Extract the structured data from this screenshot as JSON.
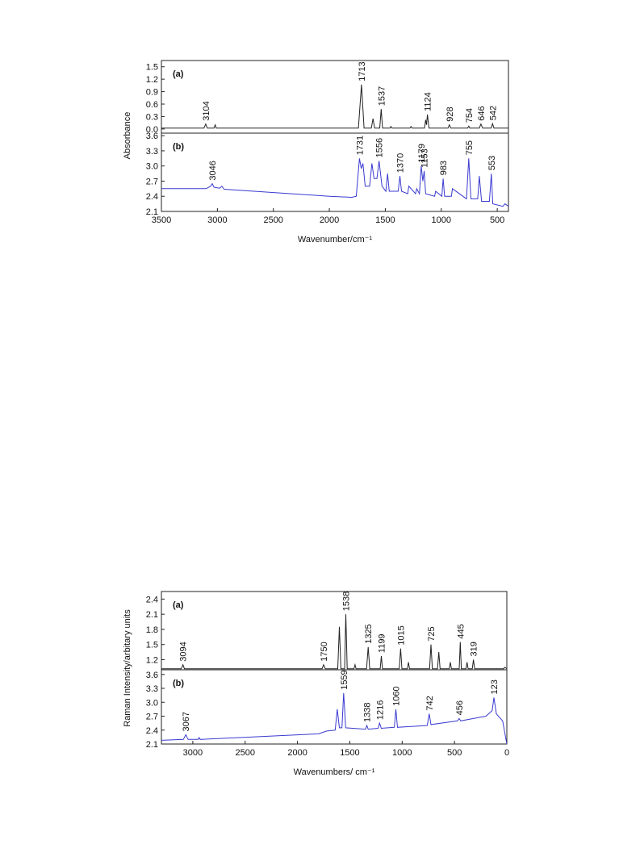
{
  "chart_data": [
    {
      "type": "line",
      "panel_label": "(a)",
      "y_label": "Absorbance",
      "color": "#222222",
      "xlim": [
        3500,
        400
      ],
      "ylim": [
        -0.1,
        1.65
      ],
      "yticks": [
        {
          "value": 0,
          "label": "0.0"
        },
        0.3,
        0.6,
        0.9,
        1.2,
        1.5
      ],
      "x": [
        3500,
        3120,
        3104,
        3090,
        3030,
        3020,
        3010,
        1740,
        1713,
        1690,
        1625,
        1610,
        1595,
        1550,
        1537,
        1525,
        1460,
        1450,
        1440,
        1280,
        1270,
        1260,
        1150,
        1140,
        1132,
        1124,
        1110,
        940,
        928,
        915,
        765,
        754,
        745,
        660,
        646,
        630,
        555,
        542,
        530,
        400
      ],
      "values": [
        0.02,
        0.02,
        0.12,
        0.02,
        0.02,
        0.1,
        0.02,
        0.02,
        1.07,
        0.02,
        0.02,
        0.25,
        0.02,
        0.02,
        0.48,
        0.02,
        0.02,
        0.06,
        0.02,
        0.02,
        0.06,
        0.02,
        0.02,
        0.22,
        0.1,
        0.35,
        0.02,
        0.02,
        0.1,
        0.02,
        0.02,
        0.07,
        0.02,
        0.02,
        0.12,
        0.02,
        0.02,
        0.13,
        0.02,
        0.02
      ],
      "annotations": [
        {
          "x": 3104,
          "label": "3104"
        },
        {
          "x": 1713,
          "label": "1713"
        },
        {
          "x": 1537,
          "label": "1537"
        },
        {
          "x": 1124,
          "label": "1124"
        },
        {
          "x": 928,
          "label": "928"
        },
        {
          "x": 754,
          "label": "754"
        },
        {
          "x": 646,
          "label": "646"
        },
        {
          "x": 542,
          "label": "542"
        }
      ]
    },
    {
      "type": "line",
      "panel_label": "(b)",
      "x_label": "Wavenumber/cm⁻¹",
      "color": "#3a3ad0",
      "xlim": [
        3500,
        400
      ],
      "ylim": [
        2.1,
        3.65
      ],
      "yticks": [
        2.1,
        2.4,
        2.7,
        {
          "value": 3,
          "label": "3.0"
        },
        3.3,
        3.6
      ],
      "xticks": [
        3500,
        3000,
        2500,
        2000,
        1500,
        1000,
        500
      ],
      "x": [
        3500,
        3100,
        3060,
        3046,
        3030,
        2980,
        2960,
        2940,
        2000,
        1800,
        1760,
        1731,
        1715,
        1700,
        1680,
        1640,
        1620,
        1600,
        1575,
        1556,
        1530,
        1495,
        1480,
        1465,
        1385,
        1370,
        1355,
        1300,
        1290,
        1230,
        1220,
        1195,
        1179,
        1165,
        1153,
        1140,
        1060,
        1050,
        995,
        983,
        970,
        910,
        900,
        775,
        755,
        735,
        675,
        660,
        640,
        570,
        553,
        540,
        450,
        430,
        400
      ],
      "values": [
        2.55,
        2.55,
        2.6,
        2.65,
        2.58,
        2.56,
        2.6,
        2.54,
        2.4,
        2.38,
        2.4,
        3.15,
        2.95,
        3.05,
        2.6,
        2.6,
        3.05,
        2.75,
        2.75,
        3.1,
        2.6,
        2.5,
        2.85,
        2.5,
        2.5,
        2.8,
        2.5,
        2.45,
        2.6,
        2.45,
        2.55,
        2.45,
        3,
        2.7,
        2.9,
        2.45,
        2.4,
        2.5,
        2.4,
        2.75,
        2.4,
        2.4,
        2.55,
        2.35,
        3.15,
        2.35,
        2.35,
        2.8,
        2.3,
        2.3,
        2.85,
        2.25,
        2.2,
        2.25,
        2.2
      ],
      "annotations": [
        {
          "x": 3046,
          "label": "3046"
        },
        {
          "x": 1731,
          "label": "1731"
        },
        {
          "x": 1556,
          "label": "1556"
        },
        {
          "x": 1370,
          "label": "1370"
        },
        {
          "x": 1179,
          "label": "1179"
        },
        {
          "x": 1153,
          "label": "1153"
        },
        {
          "x": 983,
          "label": "983"
        },
        {
          "x": 755,
          "label": "755"
        },
        {
          "x": 553,
          "label": "553"
        }
      ]
    },
    {
      "type": "line",
      "panel_label": "(a)",
      "y_label": "Raman Intensity/arbitary units",
      "color": "#222222",
      "xlim": [
        3300,
        0
      ],
      "ylim": [
        1.0,
        2.55
      ],
      "yticks": [
        1.2,
        1.5,
        1.8,
        2.1,
        2.4
      ],
      "x": [
        3300,
        3110,
        3094,
        3080,
        1765,
        1750,
        1735,
        1615,
        1600,
        1585,
        1550,
        1538,
        1525,
        1460,
        1450,
        1440,
        1340,
        1325,
        1310,
        1210,
        1199,
        1188,
        1028,
        1015,
        1002,
        950,
        940,
        930,
        738,
        725,
        712,
        662,
        650,
        638,
        550,
        540,
        530,
        455,
        445,
        435,
        390,
        380,
        370,
        330,
        319,
        308,
        30,
        20,
        0
      ],
      "values": [
        1.02,
        1.02,
        1.1,
        1.02,
        1.02,
        1.1,
        1.02,
        1.02,
        1.85,
        1.02,
        1.02,
        2.1,
        1.02,
        1.02,
        1.1,
        1.02,
        1.02,
        1.45,
        1.02,
        1.02,
        1.27,
        1.02,
        1.02,
        1.42,
        1.02,
        1.02,
        1.15,
        1.02,
        1.02,
        1.5,
        1.02,
        1.02,
        1.35,
        1.02,
        1.02,
        1.15,
        1.02,
        1.02,
        1.55,
        1.02,
        1.02,
        1.15,
        1.02,
        1.02,
        1.2,
        1.02,
        1.02,
        1.05,
        1.02
      ],
      "annotations": [
        {
          "x": 3094,
          "label": "3094"
        },
        {
          "x": 1750,
          "label": "1750"
        },
        {
          "x": 1538,
          "label": "1538"
        },
        {
          "x": 1325,
          "label": "1325"
        },
        {
          "x": 1199,
          "label": "1199"
        },
        {
          "x": 1015,
          "label": "1015"
        },
        {
          "x": 725,
          "label": "725"
        },
        {
          "x": 445,
          "label": "445"
        },
        {
          "x": 319,
          "label": "319"
        }
      ]
    },
    {
      "type": "line",
      "panel_label": "(b)",
      "x_label": "Wavenumbers/ cm⁻¹",
      "color": "#3a3ad0",
      "xlim": [
        3300,
        0
      ],
      "ylim": [
        2.1,
        3.7
      ],
      "yticks": [
        2.1,
        2.4,
        2.7,
        {
          "value": 3,
          "label": "3.0"
        },
        3.3,
        3.6
      ],
      "xticks": [
        3000,
        2500,
        2000,
        1500,
        1000,
        500,
        0
      ],
      "x": [
        3300,
        3090,
        3067,
        3045,
        2950,
        2940,
        2930,
        1800,
        1720,
        1640,
        1620,
        1600,
        1575,
        1559,
        1540,
        1350,
        1338,
        1325,
        1230,
        1216,
        1200,
        1075,
        1060,
        1045,
        760,
        742,
        725,
        470,
        456,
        440,
        200,
        140,
        123,
        100,
        40,
        0
      ],
      "values": [
        2.18,
        2.2,
        2.3,
        2.2,
        2.2,
        2.24,
        2.2,
        2.32,
        2.38,
        2.4,
        2.85,
        2.45,
        2.45,
        3.2,
        2.45,
        2.42,
        2.5,
        2.42,
        2.44,
        2.55,
        2.44,
        2.46,
        2.85,
        2.46,
        2.5,
        2.75,
        2.52,
        2.6,
        2.65,
        2.6,
        2.7,
        2.82,
        3.1,
        2.75,
        2.6,
        2.1
      ],
      "annotations": [
        {
          "x": 3067,
          "label": "3067"
        },
        {
          "x": 1559,
          "label": "1559"
        },
        {
          "x": 1338,
          "label": "1338"
        },
        {
          "x": 1216,
          "label": "1216"
        },
        {
          "x": 1060,
          "label": "1060"
        },
        {
          "x": 742,
          "label": "742"
        },
        {
          "x": 456,
          "label": "456"
        },
        {
          "x": 123,
          "label": "123"
        }
      ]
    }
  ]
}
